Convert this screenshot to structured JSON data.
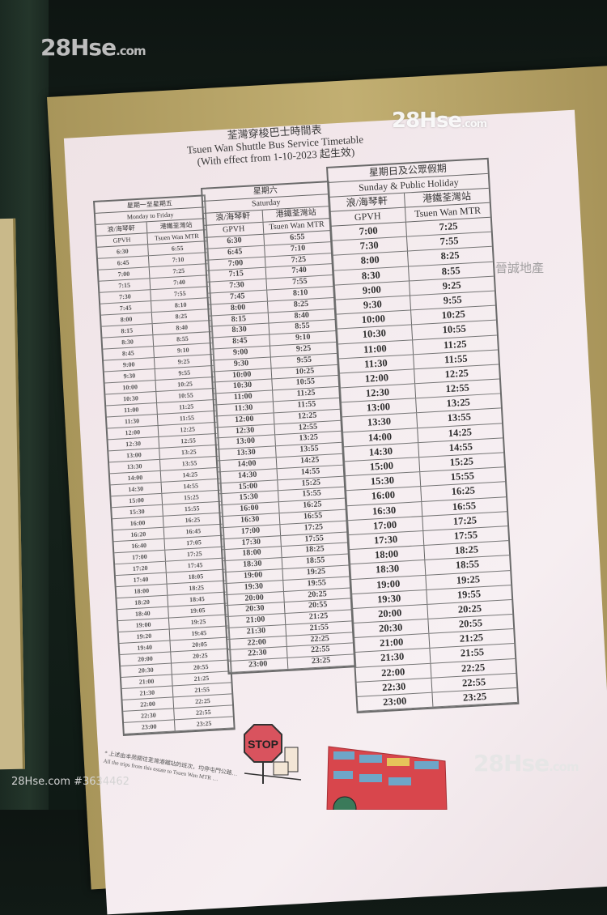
{
  "title": {
    "zh": "荃灣穿梭巴士時間表",
    "en": "Tsuen Wan Shuttle Bus Service Timetable",
    "effective": "(With effect from 1-10-2023 起生效)"
  },
  "columns": {
    "from_zh": "浪/海琴軒",
    "from_en": "GPVH",
    "to_zh": "港鐵荃灣站",
    "to_en": "Tsuen Wan MTR"
  },
  "weekday": {
    "label_zh": "星期一至星期五",
    "label_en": "Monday to Friday",
    "gpvh": [
      "6:30",
      "6:45",
      "7:00",
      "7:15",
      "7:30",
      "7:45",
      "8:00",
      "8:15",
      "8:30",
      "8:45",
      "9:00",
      "9:30",
      "10:00",
      "10:30",
      "11:00",
      "11:30",
      "12:00",
      "12:30",
      "13:00",
      "13:30",
      "14:00",
      "14:30",
      "15:00",
      "15:30",
      "16:00",
      "16:20",
      "16:40",
      "17:00",
      "17:20",
      "17:40",
      "18:00",
      "18:20",
      "18:40",
      "19:00",
      "19:20",
      "19:40",
      "20:00",
      "20:30",
      "21:00",
      "21:30",
      "22:00",
      "22:30",
      "23:00"
    ],
    "mtr": [
      "6:55",
      "7:10",
      "7:25",
      "7:40",
      "7:55",
      "8:10",
      "8:25",
      "8:40",
      "8:55",
      "9:10",
      "9:25",
      "9:55",
      "10:25",
      "10:55",
      "11:25",
      "11:55",
      "12:25",
      "12:55",
      "13:25",
      "13:55",
      "14:25",
      "14:55",
      "15:25",
      "15:55",
      "16:25",
      "16:45",
      "17:05",
      "17:25",
      "17:45",
      "18:05",
      "18:25",
      "18:45",
      "19:05",
      "19:25",
      "19:45",
      "20:05",
      "20:25",
      "20:55",
      "21:25",
      "21:55",
      "22:25",
      "22:55",
      "23:25"
    ]
  },
  "saturday": {
    "label_zh": "星期六",
    "label_en": "Saturday",
    "gpvh": [
      "6:30",
      "6:45",
      "7:00",
      "7:15",
      "7:30",
      "7:45",
      "8:00",
      "8:15",
      "8:30",
      "8:45",
      "9:00",
      "9:30",
      "10:00",
      "10:30",
      "11:00",
      "11:30",
      "12:00",
      "12:30",
      "13:00",
      "13:30",
      "14:00",
      "14:30",
      "15:00",
      "15:30",
      "16:00",
      "16:30",
      "17:00",
      "17:30",
      "18:00",
      "18:30",
      "19:00",
      "19:30",
      "20:00",
      "20:30",
      "21:00",
      "21:30",
      "22:00",
      "22:30",
      "23:00"
    ],
    "mtr": [
      "6:55",
      "7:10",
      "7:25",
      "7:40",
      "7:55",
      "8:10",
      "8:25",
      "8:40",
      "8:55",
      "9:10",
      "9:25",
      "9:55",
      "10:25",
      "10:55",
      "11:25",
      "11:55",
      "12:25",
      "12:55",
      "13:25",
      "13:55",
      "14:25",
      "14:55",
      "15:25",
      "15:55",
      "16:25",
      "16:55",
      "17:25",
      "17:55",
      "18:25",
      "18:55",
      "19:25",
      "19:55",
      "20:25",
      "20:55",
      "21:25",
      "21:55",
      "22:25",
      "22:55",
      "23:25"
    ]
  },
  "sunday": {
    "label_zh": "星期日及公眾假期",
    "label_en": "Sunday & Public Holiday",
    "gpvh": [
      "7:00",
      "7:30",
      "8:00",
      "8:30",
      "9:00",
      "9:30",
      "10:00",
      "10:30",
      "11:00",
      "11:30",
      "12:00",
      "12:30",
      "13:00",
      "13:30",
      "14:00",
      "14:30",
      "15:00",
      "15:30",
      "16:00",
      "16:30",
      "17:00",
      "17:30",
      "18:00",
      "18:30",
      "19:00",
      "19:30",
      "20:00",
      "20:30",
      "21:00",
      "21:30",
      "22:00",
      "22:30",
      "23:00"
    ],
    "mtr": [
      "7:25",
      "7:55",
      "8:25",
      "8:55",
      "9:25",
      "9:55",
      "10:25",
      "10:55",
      "11:25",
      "11:55",
      "12:25",
      "12:55",
      "13:25",
      "13:55",
      "14:25",
      "14:55",
      "15:25",
      "15:55",
      "16:25",
      "16:55",
      "17:25",
      "17:55",
      "18:25",
      "18:55",
      "19:25",
      "19:55",
      "20:25",
      "20:55",
      "21:25",
      "21:55",
      "22:25",
      "22:55",
      "23:25"
    ]
  },
  "footnote": {
    "zh": "* 上述由本苑開往荃灣港鐵站的班次，均停屯門公路…",
    "en": "All the trips from this estate to Tsuen Wan MTR …"
  },
  "stop_sign_text": "STOP",
  "watermarks": {
    "brand": "28Hse",
    "domain": ".com",
    "listing": "28Hse.com #3634462",
    "agency": "晉誠地產"
  },
  "colors": {
    "paper": "#f2e7eb",
    "frame": "#b5a265",
    "stop_sign": "#d9535e",
    "bus": "#d8464c"
  }
}
